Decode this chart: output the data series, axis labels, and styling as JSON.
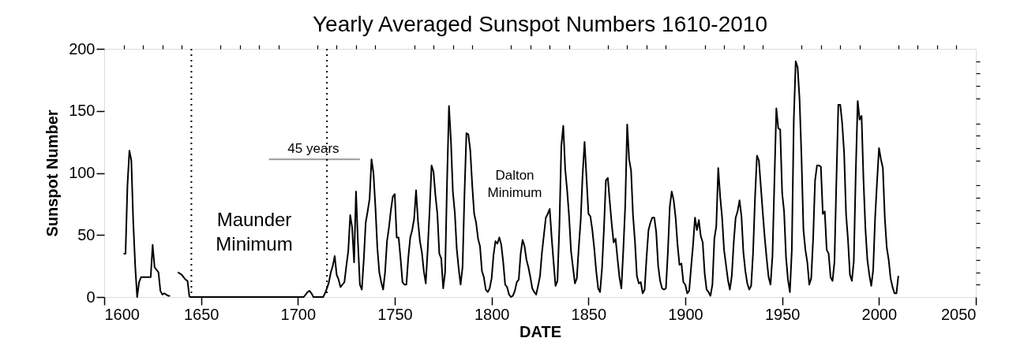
{
  "chart_data": {
    "type": "line",
    "title": "Yearly Averaged Sunspot Numbers 1610-2010",
    "xlabel": "DATE",
    "ylabel": "Sunspot Number",
    "xlim": [
      1600,
      2050
    ],
    "xticks": [
      1600,
      {
        "value": 1610,
        "label": null
      },
      {
        "value": 1620,
        "label": null
      },
      {
        "value": 1630,
        "label": null
      },
      {
        "value": 1640,
        "label": null
      },
      1650,
      {
        "value": 1660,
        "label": null
      },
      {
        "value": 1670,
        "label": null
      },
      {
        "value": 1680,
        "label": null
      },
      {
        "value": 1690,
        "label": null
      },
      1700,
      {
        "value": 1710,
        "label": null
      },
      {
        "value": 1720,
        "label": null
      },
      {
        "value": 1730,
        "label": null
      },
      {
        "value": 1740,
        "label": null
      },
      1750,
      {
        "value": 1760,
        "label": null
      },
      {
        "value": 1770,
        "label": null
      },
      {
        "value": 1780,
        "label": null
      },
      {
        "value": 1790,
        "label": null
      },
      1800,
      {
        "value": 1810,
        "label": null
      },
      {
        "value": 1820,
        "label": null
      },
      {
        "value": 1830,
        "label": null
      },
      {
        "value": 1840,
        "label": null
      },
      1850,
      {
        "value": 1860,
        "label": null
      },
      {
        "value": 1870,
        "label": null
      },
      {
        "value": 1880,
        "label": null
      },
      {
        "value": 1890,
        "label": null
      },
      1900,
      {
        "value": 1910,
        "label": null
      },
      {
        "value": 1920,
        "label": null
      },
      {
        "value": 1930,
        "label": null
      },
      {
        "value": 1940,
        "label": null
      },
      1950,
      {
        "value": 1960,
        "label": null
      },
      {
        "value": 1970,
        "label": null
      },
      {
        "value": 1980,
        "label": null
      },
      {
        "value": 1990,
        "label": null
      },
      2000,
      {
        "value": 2010,
        "label": null
      },
      {
        "value": 2020,
        "label": null
      },
      {
        "value": 2030,
        "label": null
      },
      {
        "value": 2040,
        "label": null
      },
      2050
    ],
    "ylim": [
      0,
      200
    ],
    "yticks": [
      0,
      {
        "value": 10,
        "label": null
      },
      {
        "value": 20,
        "label": null
      },
      {
        "value": 30,
        "label": null
      },
      {
        "value": 40,
        "label": null
      },
      50,
      {
        "value": 60,
        "label": null
      },
      {
        "value": 70,
        "label": null
      },
      {
        "value": 80,
        "label": null
      },
      {
        "value": 90,
        "label": null
      },
      100,
      {
        "value": 110,
        "label": null
      },
      {
        "value": 120,
        "label": null
      },
      {
        "value": 130,
        "label": null
      },
      {
        "value": 140,
        "label": null
      },
      150,
      {
        "value": 160,
        "label": null
      },
      {
        "value": 170,
        "label": null
      },
      {
        "value": 180,
        "label": null
      },
      {
        "value": 190,
        "label": null
      },
      200
    ],
    "ref_lines": [
      {
        "axis": "x",
        "value": 1645,
        "color": "#000000",
        "line_style": "dotted"
      },
      {
        "axis": "x",
        "value": 1715,
        "color": "#000000",
        "line_style": "dotted"
      }
    ],
    "annotations": [
      "Maunder Minimum",
      "Dalton Minimum",
      {
        "text": "45 years",
        "x": 1708,
        "y": 111
      }
    ],
    "series": [
      {
        "color": "#000000",
        "x": [
          1610,
          1611,
          1612,
          1613,
          1614,
          1615,
          1616,
          1617,
          1618,
          1619,
          1620,
          1621,
          1622,
          1623,
          1624,
          1625,
          1626,
          1627,
          1628,
          1629,
          1630,
          1631,
          1632,
          1633,
          1634
        ],
        "values": [
          35,
          35,
          90,
          118,
          110,
          60,
          25,
          0,
          12,
          16,
          16,
          16,
          16,
          16,
          16,
          42,
          24,
          22,
          20,
          5,
          2,
          3,
          2,
          1,
          1
        ]
      },
      {
        "color": "#000000",
        "x": [
          1638,
          1639,
          1640,
          1641,
          1642,
          1643,
          1644
        ],
        "values": [
          20,
          19,
          18,
          16,
          14,
          13,
          0
        ]
      },
      {
        "color": "#000000",
        "x": [
          1644,
          1645,
          1646,
          1647,
          1648,
          1649,
          1650,
          1651,
          1652,
          1653,
          1654,
          1655,
          1656,
          1657,
          1658,
          1659,
          1660,
          1661,
          1662,
          1663,
          1664,
          1665,
          1666,
          1667,
          1668,
          1669,
          1670,
          1671,
          1672,
          1673,
          1674,
          1675,
          1676,
          1677,
          1678,
          1679,
          1680,
          1681,
          1682,
          1683,
          1684,
          1685,
          1686,
          1687,
          1688,
          1689,
          1690,
          1691,
          1692,
          1693,
          1694,
          1695,
          1696,
          1697,
          1698,
          1699,
          1700,
          1701,
          1702,
          1703,
          1704,
          1705,
          1706,
          1707,
          1708,
          1709,
          1710,
          1711,
          1712,
          1713,
          1714,
          1715,
          1716,
          1717,
          1718,
          1719,
          1720,
          1721,
          1722,
          1723,
          1724,
          1725,
          1726,
          1727,
          1728,
          1729,
          1730,
          1731,
          1732,
          1733,
          1734,
          1735,
          1736,
          1737,
          1738,
          1739,
          1740,
          1741,
          1742,
          1743,
          1744,
          1745,
          1746,
          1747,
          1748,
          1749,
          1750,
          1751,
          1752,
          1753,
          1754,
          1755,
          1756,
          1757,
          1758,
          1759,
          1760,
          1761,
          1762,
          1763,
          1764,
          1765,
          1766,
          1767,
          1768,
          1769,
          1770,
          1771,
          1772,
          1773,
          1774,
          1775,
          1776,
          1777,
          1778,
          1779,
          1780,
          1781,
          1782,
          1783,
          1784,
          1785,
          1786,
          1787,
          1788,
          1789,
          1790,
          1791,
          1792,
          1793,
          1794,
          1795,
          1796,
          1797,
          1798,
          1799,
          1800,
          1801,
          1802,
          1803,
          1804,
          1805,
          1806,
          1807,
          1808,
          1809,
          1810,
          1811,
          1812,
          1813,
          1814,
          1815,
          1816,
          1817,
          1818,
          1819,
          1820,
          1821,
          1822,
          1823,
          1824,
          1825,
          1826,
          1827,
          1828,
          1829,
          1830,
          1831,
          1832,
          1833,
          1834,
          1835,
          1836,
          1837,
          1838,
          1839,
          1840,
          1841,
          1842,
          1843,
          1844,
          1845,
          1846,
          1847,
          1848,
          1849,
          1850,
          1851,
          1852,
          1853,
          1854,
          1855,
          1856,
          1857,
          1858,
          1859,
          1860,
          1861,
          1862,
          1863,
          1864,
          1865,
          1866,
          1867,
          1868,
          1869,
          1870,
          1871,
          1872,
          1873,
          1874,
          1875,
          1876,
          1877,
          1878,
          1879,
          1880,
          1881,
          1882,
          1883,
          1884,
          1885,
          1886,
          1887,
          1888,
          1889,
          1890,
          1891,
          1892,
          1893,
          1894,
          1895,
          1896,
          1897,
          1898,
          1899,
          1900,
          1901,
          1902,
          1903,
          1904,
          1905,
          1906,
          1907,
          1908,
          1909,
          1910,
          1911,
          1912,
          1913,
          1914,
          1915,
          1916,
          1917,
          1918,
          1919,
          1920,
          1921,
          1922,
          1923,
          1924,
          1925,
          1926,
          1927,
          1928,
          1929,
          1930,
          1931,
          1932,
          1933,
          1934,
          1935,
          1936,
          1937,
          1938,
          1939,
          1940,
          1941,
          1942,
          1943,
          1944,
          1945,
          1946,
          1947,
          1948,
          1949,
          1950,
          1951,
          1952,
          1953,
          1954,
          1955,
          1956,
          1957,
          1958,
          1959,
          1960,
          1961,
          1962,
          1963,
          1964,
          1965,
          1966,
          1967,
          1968,
          1969,
          1970,
          1971,
          1972,
          1973,
          1974,
          1975,
          1976,
          1977,
          1978,
          1979,
          1980,
          1981,
          1982,
          1983,
          1984,
          1985,
          1986,
          1987,
          1988,
          1989,
          1990,
          1991,
          1992,
          1993,
          1994,
          1995,
          1996,
          1997,
          1998,
          1999,
          2000,
          2001,
          2002,
          2003,
          2004,
          2005,
          2006,
          2007,
          2008,
          2009,
          2010
        ],
        "values": [
          0,
          0,
          0,
          0,
          0,
          0,
          0,
          0,
          0,
          0,
          0,
          0,
          0,
          0,
          0,
          0,
          0,
          0,
          0,
          0,
          0,
          0,
          0,
          0,
          0,
          0,
          0,
          0,
          0,
          0,
          0,
          0,
          0,
          0,
          0,
          0,
          0,
          0,
          0,
          0,
          0,
          0,
          0,
          0,
          0,
          0,
          0,
          0,
          0,
          0,
          0,
          0,
          0,
          0,
          0,
          0,
          0,
          0,
          0,
          0,
          2,
          4,
          5,
          3,
          0,
          0,
          0,
          0,
          0,
          0,
          3,
          7,
          12,
          20,
          25,
          33,
          18,
          14,
          8,
          10,
          12,
          25,
          37,
          66,
          56,
          28,
          85,
          44,
          10,
          6,
          30,
          60,
          69,
          79,
          111,
          100,
          73,
          40,
          20,
          12,
          6,
          20,
          45,
          56,
          70,
          81,
          83,
          48,
          48,
          31,
          12,
          10,
          10,
          32,
          48,
          54,
          63,
          86,
          61,
          45,
          36,
          21,
          11,
          38,
          70,
          106,
          101,
          82,
          67,
          35,
          31,
          7,
          20,
          93,
          154,
          126,
          85,
          68,
          39,
          23,
          10,
          24,
          83,
          132,
          131,
          118,
          90,
          67,
          60,
          47,
          41,
          21,
          16,
          6,
          4,
          7,
          15,
          34,
          45,
          43,
          48,
          42,
          28,
          10,
          8,
          2,
          0,
          1,
          5,
          12,
          14,
          35,
          46,
          41,
          30,
          24,
          16,
          7,
          4,
          2,
          9,
          17,
          36,
          50,
          64,
          67,
          71,
          48,
          28,
          9,
          13,
          57,
          122,
          138,
          103,
          86,
          65,
          37,
          24,
          11,
          15,
          40,
          62,
          99,
          125,
          96,
          67,
          65,
          54,
          39,
          21,
          7,
          4,
          23,
          55,
          94,
          96,
          77,
          59,
          44,
          47,
          31,
          16,
          7,
          38,
          74,
          139,
          111,
          102,
          66,
          45,
          17,
          11,
          12,
          3,
          6,
          32,
          54,
          60,
          64,
          64,
          52,
          25,
          13,
          7,
          6,
          7,
          36,
          73,
          85,
          78,
          64,
          42,
          26,
          27,
          12,
          10,
          3,
          5,
          24,
          42,
          64,
          54,
          62,
          49,
          44,
          19,
          6,
          4,
          1,
          10,
          47,
          57,
          104,
          81,
          64,
          38,
          26,
          14,
          6,
          17,
          44,
          64,
          69,
          78,
          65,
          36,
          21,
          11,
          6,
          9,
          36,
          80,
          114,
          110,
          89,
          68,
          48,
          31,
          16,
          10,
          33,
          93,
          152,
          136,
          135,
          84,
          69,
          32,
          14,
          4,
          38,
          142,
          190,
          185,
          159,
          112,
          54,
          38,
          28,
          10,
          15,
          47,
          94,
          106,
          106,
          105,
          67,
          69,
          38,
          35,
          16,
          13,
          28,
          93,
          155,
          155,
          140,
          116,
          67,
          46,
          18,
          13,
          29,
          100,
          158,
          143,
          146,
          94,
          55,
          30,
          18,
          9,
          22,
          64,
          93,
          120,
          111,
          104,
          64,
          40,
          30,
          15,
          8,
          3,
          3,
          17
        ]
      },
      {
        "color": "#999999",
        "x": [
          1685,
          1732
        ],
        "values": [
          111,
          111
        ]
      }
    ]
  }
}
